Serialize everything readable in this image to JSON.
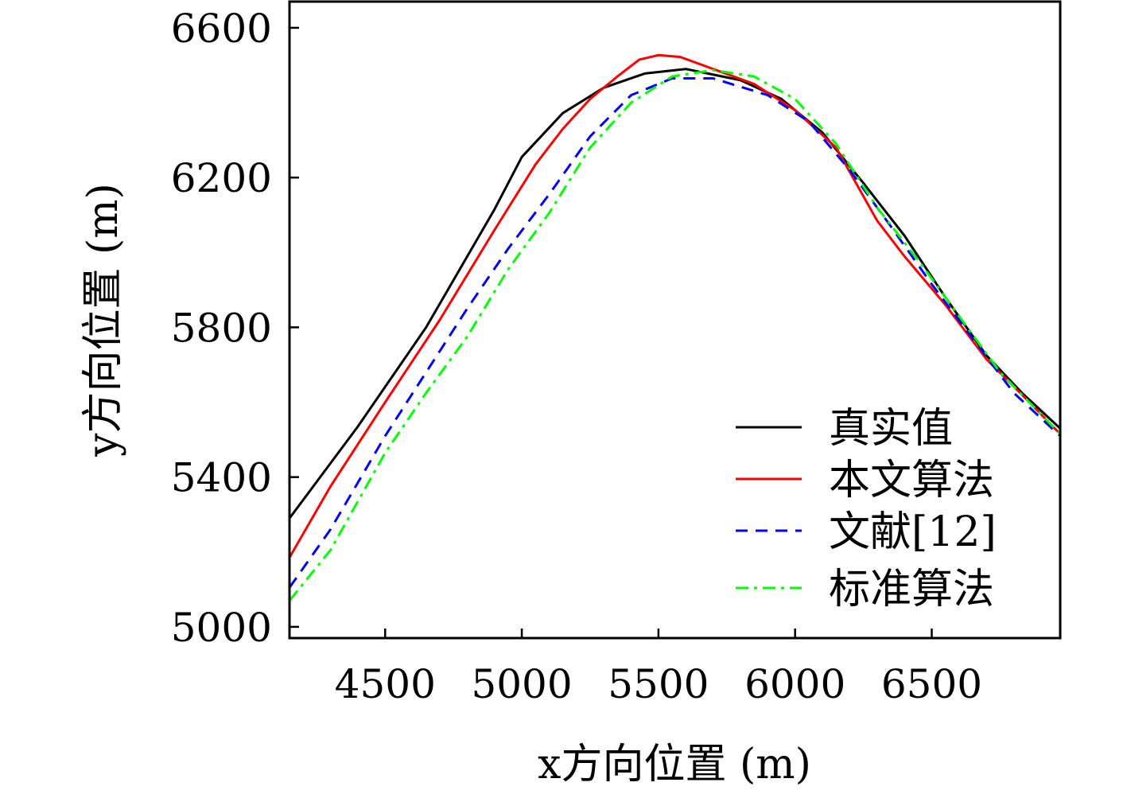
{
  "chart_data": {
    "type": "line",
    "xlabel": "x方向位置 (m)",
    "ylabel": "y方向位置 (m)",
    "xlim": [
      4150,
      6970
    ],
    "ylim": [
      4970,
      6670
    ],
    "x_ticks": [
      "4500",
      "5000",
      "5500",
      "6000",
      "6500"
    ],
    "y_ticks": [
      "5000",
      "5400",
      "5800",
      "6200",
      "6600"
    ],
    "grid": false,
    "legend_position": "bottom-right",
    "series": [
      {
        "name": "真实值",
        "color": "#000000",
        "dash": "solid",
        "points": [
          [
            4150,
            5290
          ],
          [
            4400,
            5535
          ],
          [
            4650,
            5800
          ],
          [
            4900,
            6115
          ],
          [
            5000,
            6255
          ],
          [
            5150,
            6372
          ],
          [
            5300,
            6440
          ],
          [
            5450,
            6478
          ],
          [
            5600,
            6490
          ],
          [
            5800,
            6460
          ],
          [
            5950,
            6410
          ],
          [
            6100,
            6320
          ],
          [
            6250,
            6185
          ],
          [
            6400,
            6045
          ],
          [
            6550,
            5880
          ],
          [
            6700,
            5725
          ],
          [
            6830,
            5625
          ],
          [
            6970,
            5530
          ]
        ]
      },
      {
        "name": "本文算法",
        "color": "#ff0000",
        "dash": "solid",
        "points": [
          [
            4150,
            5185
          ],
          [
            4300,
            5375
          ],
          [
            4500,
            5600
          ],
          [
            4700,
            5820
          ],
          [
            4900,
            6060
          ],
          [
            5050,
            6235
          ],
          [
            5150,
            6330
          ],
          [
            5250,
            6410
          ],
          [
            5350,
            6470
          ],
          [
            5430,
            6515
          ],
          [
            5500,
            6527
          ],
          [
            5580,
            6522
          ],
          [
            5700,
            6490
          ],
          [
            5850,
            6450
          ],
          [
            6000,
            6380
          ],
          [
            6150,
            6280
          ],
          [
            6300,
            6085
          ],
          [
            6400,
            5990
          ],
          [
            6550,
            5860
          ],
          [
            6700,
            5715
          ],
          [
            6830,
            5620
          ],
          [
            6970,
            5515
          ]
        ]
      },
      {
        "name": "文献[12]",
        "color": "#0000ff",
        "dash": "dash",
        "points": [
          [
            4150,
            5105
          ],
          [
            4300,
            5260
          ],
          [
            4500,
            5510
          ],
          [
            4650,
            5680
          ],
          [
            4800,
            5850
          ],
          [
            4950,
            6010
          ],
          [
            5100,
            6155
          ],
          [
            5250,
            6310
          ],
          [
            5400,
            6420
          ],
          [
            5550,
            6465
          ],
          [
            5700,
            6465
          ],
          [
            5900,
            6420
          ],
          [
            6050,
            6350
          ],
          [
            6200,
            6220
          ],
          [
            6350,
            6070
          ],
          [
            6500,
            5915
          ],
          [
            6650,
            5770
          ],
          [
            6800,
            5625
          ],
          [
            6970,
            5510
          ]
        ]
      },
      {
        "name": "标准算法",
        "color": "#00ff00",
        "dash": "dashdot",
        "points": [
          [
            4150,
            5070
          ],
          [
            4300,
            5205
          ],
          [
            4500,
            5465
          ],
          [
            4650,
            5625
          ],
          [
            4800,
            5775
          ],
          [
            4950,
            5955
          ],
          [
            5100,
            6105
          ],
          [
            5250,
            6280
          ],
          [
            5400,
            6400
          ],
          [
            5550,
            6470
          ],
          [
            5700,
            6487
          ],
          [
            5850,
            6470
          ],
          [
            6000,
            6410
          ],
          [
            6150,
            6290
          ],
          [
            6300,
            6120
          ],
          [
            6450,
            5980
          ],
          [
            6600,
            5830
          ],
          [
            6750,
            5680
          ],
          [
            6970,
            5515
          ]
        ]
      }
    ]
  }
}
